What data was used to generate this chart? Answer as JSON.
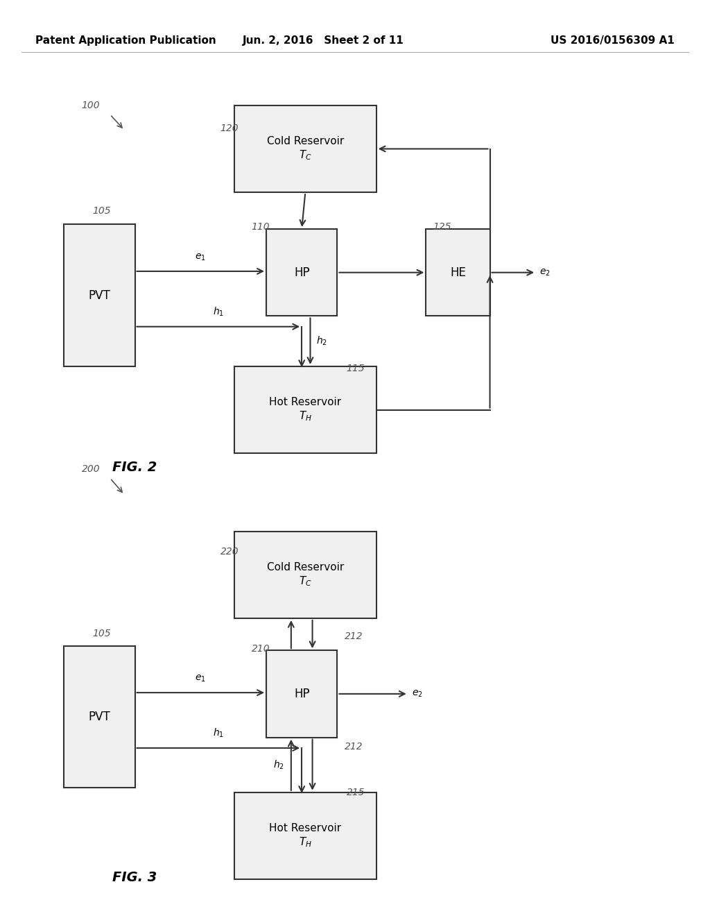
{
  "bg_color": "#ffffff",
  "line_color": "#333333",
  "box_fill": "#f0f0f0",
  "box_edge": "#333333",
  "header_text": {
    "left": "Patent Application Publication",
    "center": "Jun. 2, 2016   Sheet 2 of 11",
    "right": "US 2016/0156309 A1"
  },
  "arrow_color": "#333333",
  "font_size_label": 10,
  "font_size_box": 11,
  "font_size_header": 11,
  "font_size_figlabel": 14
}
